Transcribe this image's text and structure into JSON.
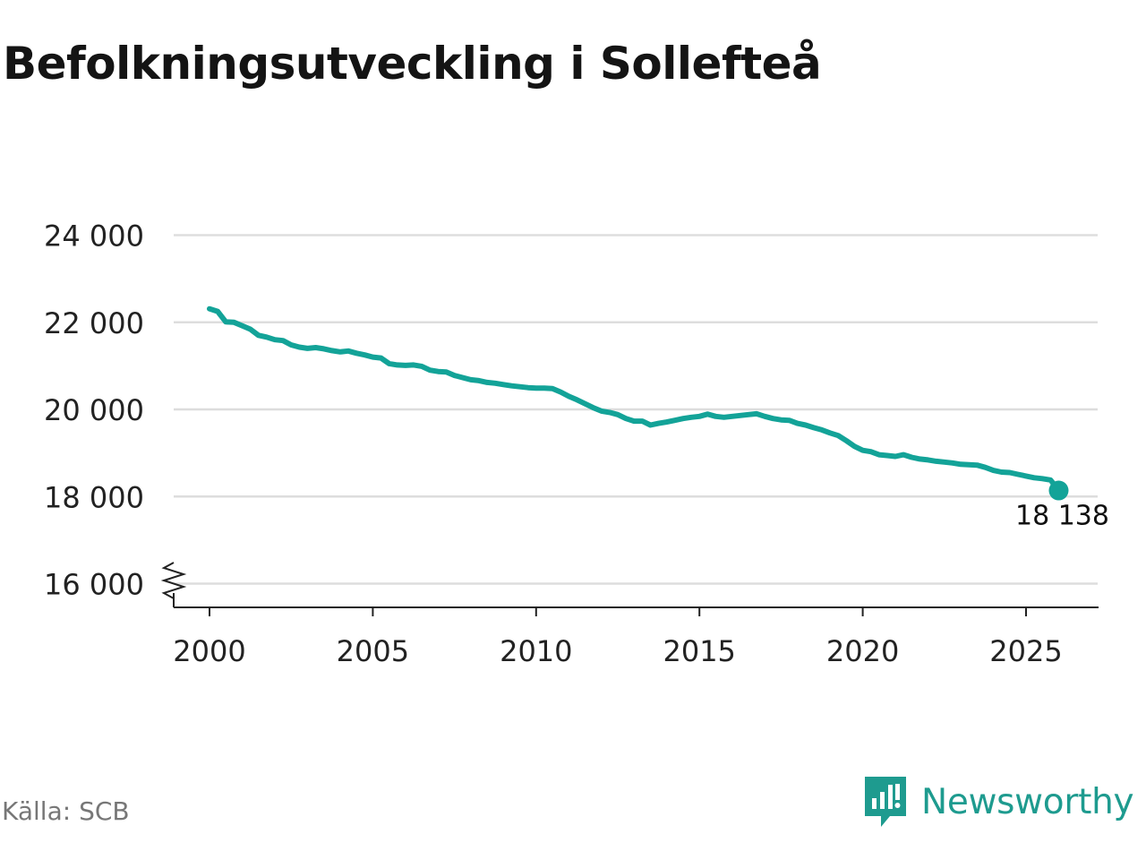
{
  "title": "Befolkningsutveckling i Sollefteå",
  "source": "Källa: SCB",
  "brand": {
    "name": "Newsworthy",
    "icon": "chart-bubble-icon",
    "color": "#1e9b8f"
  },
  "colors": {
    "line": "#13a398",
    "grid": "#dddddd",
    "axis": "#222222",
    "text": "#222222"
  },
  "chart_data": {
    "type": "line",
    "title": "Befolkningsutveckling i Sollefteå",
    "xlabel": "",
    "ylabel": "",
    "xlim": [
      1999,
      2027.3
    ],
    "ylim": [
      15400,
      24400
    ],
    "axis_break": true,
    "grid": true,
    "x_ticks": [
      2000,
      2005,
      2010,
      2015,
      2020,
      2025
    ],
    "x_tick_labels": [
      "2000",
      "2005",
      "2010",
      "2015",
      "2020",
      "2025"
    ],
    "y_ticks": [
      16000,
      18000,
      20000,
      22000,
      24000
    ],
    "y_tick_labels": [
      "16 000",
      "18 000",
      "20 000",
      "22 000",
      "24 000"
    ],
    "series": [
      {
        "name": "Befolkning",
        "x": [
          2000.0,
          2000.25,
          2000.5,
          2000.75,
          2001.0,
          2001.25,
          2001.5,
          2001.75,
          2002.0,
          2002.25,
          2002.5,
          2002.75,
          2003.0,
          2003.25,
          2003.5,
          2003.75,
          2004.0,
          2004.25,
          2004.5,
          2004.75,
          2005.0,
          2005.25,
          2005.5,
          2005.75,
          2006.0,
          2006.25,
          2006.5,
          2006.75,
          2007.0,
          2007.25,
          2007.5,
          2007.75,
          2008.0,
          2008.25,
          2008.5,
          2008.75,
          2009.0,
          2009.25,
          2009.5,
          2009.75,
          2010.0,
          2010.25,
          2010.5,
          2010.75,
          2011.0,
          2011.25,
          2011.5,
          2011.75,
          2012.0,
          2012.25,
          2012.5,
          2012.75,
          2013.0,
          2013.25,
          2013.5,
          2013.75,
          2014.0,
          2014.25,
          2014.5,
          2014.75,
          2015.0,
          2015.25,
          2015.5,
          2015.75,
          2016.0,
          2016.25,
          2016.5,
          2016.75,
          2017.0,
          2017.25,
          2017.5,
          2017.75,
          2018.0,
          2018.25,
          2018.5,
          2018.75,
          2019.0,
          2019.25,
          2019.5,
          2019.75,
          2020.0,
          2020.25,
          2020.5,
          2020.75,
          2021.0,
          2021.25,
          2021.5,
          2021.75,
          2022.0,
          2022.25,
          2022.5,
          2022.75,
          2023.0,
          2023.25,
          2023.5,
          2023.75,
          2024.0,
          2024.25,
          2024.5,
          2024.75,
          2025.0,
          2025.25,
          2025.5,
          2025.75,
          2026.0
        ],
        "values": [
          22310,
          22250,
          22010,
          22000,
          21920,
          21840,
          21700,
          21660,
          21600,
          21580,
          21480,
          21430,
          21400,
          21420,
          21390,
          21350,
          21320,
          21340,
          21290,
          21250,
          21200,
          21180,
          21050,
          21020,
          21010,
          21020,
          20990,
          20900,
          20870,
          20860,
          20780,
          20730,
          20680,
          20660,
          20620,
          20600,
          20570,
          20540,
          20520,
          20500,
          20490,
          20490,
          20480,
          20400,
          20300,
          20220,
          20130,
          20040,
          19960,
          19930,
          19880,
          19790,
          19730,
          19730,
          19640,
          19680,
          19710,
          19750,
          19790,
          19820,
          19840,
          19890,
          19840,
          19820,
          19840,
          19860,
          19880,
          19900,
          19840,
          19790,
          19760,
          19750,
          19680,
          19640,
          19580,
          19530,
          19460,
          19400,
          19280,
          19150,
          19060,
          19030,
          18960,
          18940,
          18920,
          18960,
          18900,
          18860,
          18840,
          18810,
          18790,
          18770,
          18740,
          18730,
          18720,
          18670,
          18600,
          18560,
          18550,
          18510,
          18470,
          18430,
          18410,
          18380,
          18138
        ]
      }
    ],
    "last_point": {
      "x": 2026.0,
      "value": 18138,
      "label": "18 138"
    }
  }
}
